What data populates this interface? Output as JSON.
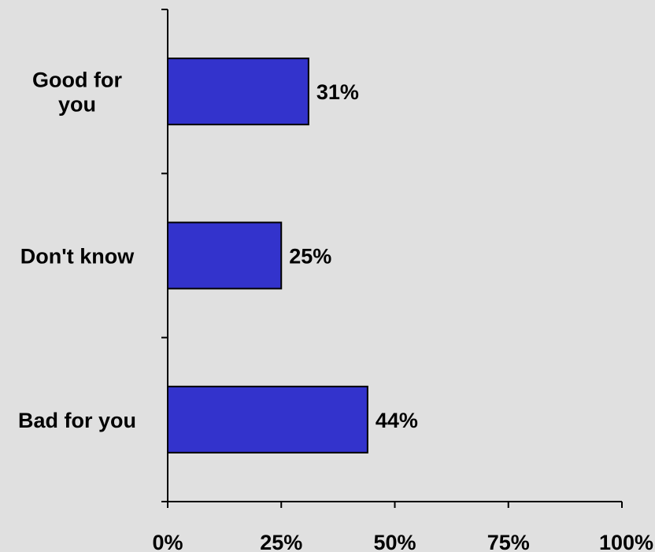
{
  "chart_data": {
    "type": "bar",
    "orientation": "horizontal",
    "categories": [
      "Good for you",
      "Don't know",
      "Bad for you"
    ],
    "category_label_lines": [
      [
        "Good for",
        "you"
      ],
      [
        "Don't know"
      ],
      [
        "Bad for you"
      ]
    ],
    "values": [
      31,
      25,
      44
    ],
    "data_labels": [
      "31%",
      "25%",
      "44%"
    ],
    "xlim": [
      0,
      100
    ],
    "x_ticks": [
      0,
      25,
      50,
      75,
      100
    ],
    "x_tick_labels": [
      "0%",
      "25%",
      "50%",
      "75%",
      "100%"
    ],
    "title": "",
    "xlabel": "",
    "ylabel": "",
    "grid": false,
    "legend": "none",
    "colors": {
      "bar_fill": "#3333cc",
      "bar_stroke": "#000000",
      "axis": "#000000",
      "background": "#e0e0e0"
    }
  }
}
